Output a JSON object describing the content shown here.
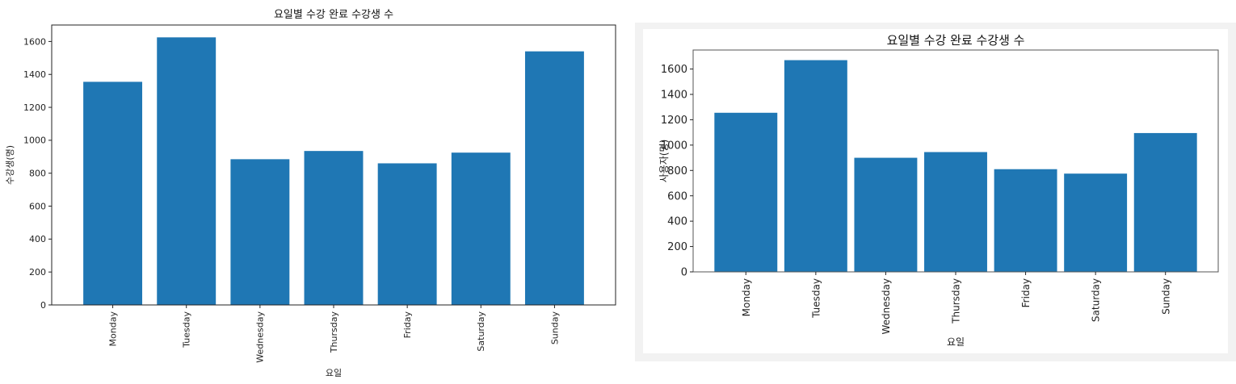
{
  "chart_data": [
    {
      "type": "bar",
      "title": "요일별 수강 완료 수강생 수",
      "xlabel": "요일",
      "ylabel": "수강생(명)",
      "categories": [
        "Monday",
        "Tuesday",
        "Wednesday",
        "Thursday",
        "Friday",
        "Saturday",
        "Sunday"
      ],
      "values": [
        1355,
        1625,
        885,
        935,
        860,
        925,
        1540
      ],
      "ylim": [
        0,
        1700
      ],
      "yticks": [
        0,
        200,
        400,
        600,
        800,
        1000,
        1200,
        1400,
        1600
      ],
      "color": "#1f77b4",
      "grid": false
    },
    {
      "type": "bar",
      "title": "요일별 수강 완료 수강생 수",
      "xlabel": "요일",
      "ylabel": "사용자(명)",
      "categories": [
        "Monday",
        "Tuesday",
        "Wednesday",
        "Thursday",
        "Friday",
        "Saturday",
        "Sunday"
      ],
      "values": [
        1255,
        1670,
        900,
        945,
        810,
        775,
        1095
      ],
      "ylim": [
        0,
        1750
      ],
      "yticks": [
        0,
        200,
        400,
        600,
        800,
        1000,
        1200,
        1400,
        1600
      ],
      "color": "#1f77b4",
      "grid": false
    }
  ]
}
